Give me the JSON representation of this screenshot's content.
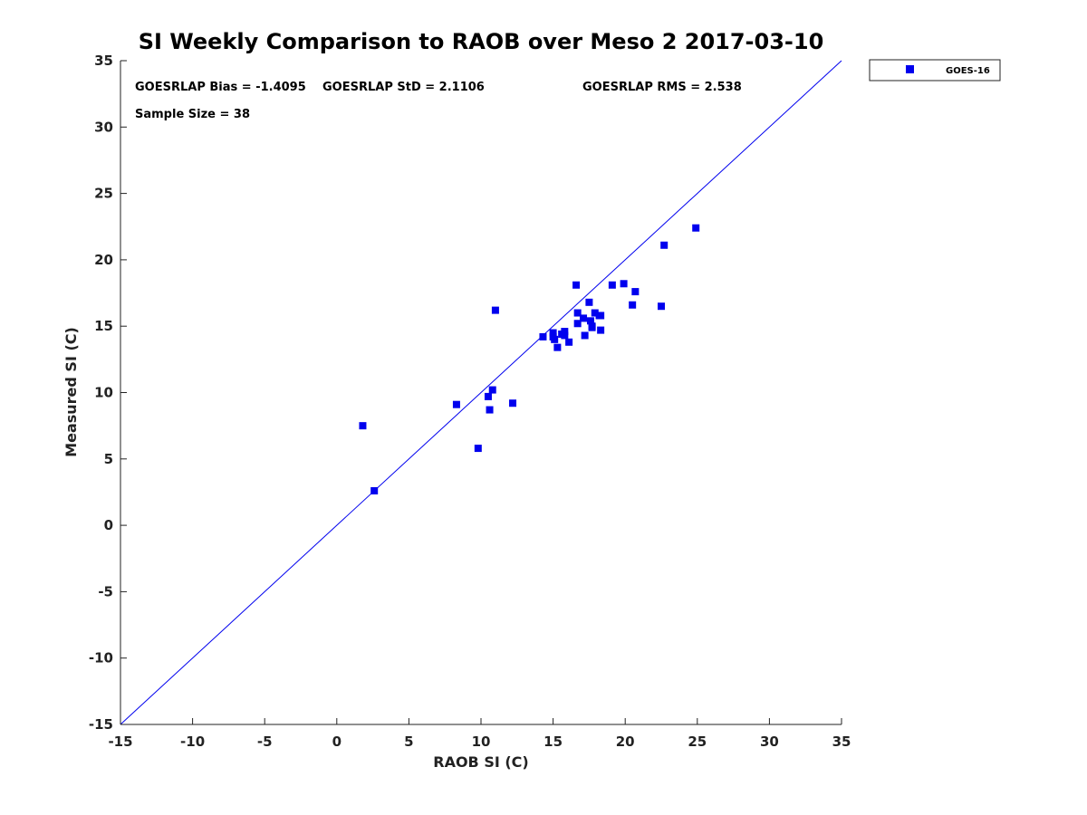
{
  "chart_data": {
    "type": "scatter",
    "title": "SI Weekly Comparison to RAOB over Meso 2 2017-03-10",
    "xlabel": "RAOB SI (C)",
    "ylabel": "Measured SI (C)",
    "xlim": [
      -15,
      35
    ],
    "ylim": [
      -15,
      35
    ],
    "xticks": [
      -15,
      -10,
      -5,
      0,
      5,
      10,
      15,
      20,
      25,
      30,
      35
    ],
    "yticks": [
      -15,
      -10,
      -5,
      0,
      5,
      10,
      15,
      20,
      25,
      30,
      35
    ],
    "grid": false,
    "legend_position": "outside-top-right",
    "reference_line": "1:1",
    "annotations": {
      "bias": "GOESRLAP Bias = -1.4095",
      "std": "GOESRLAP StD = 2.1106",
      "rms": "GOESRLAP RMS = 2.538",
      "sample": "Sample Size = 38"
    },
    "series": [
      {
        "name": "GOES-16",
        "color": "#0000ee",
        "marker": "square",
        "points": [
          [
            1.8,
            7.5
          ],
          [
            2.6,
            2.6
          ],
          [
            8.3,
            9.1
          ],
          [
            9.8,
            5.8
          ],
          [
            10.5,
            9.7
          ],
          [
            10.6,
            8.7
          ],
          [
            10.8,
            10.2
          ],
          [
            11.0,
            16.2
          ],
          [
            12.2,
            9.2
          ],
          [
            14.3,
            14.2
          ],
          [
            15.0,
            14.5
          ],
          [
            15.0,
            14.2
          ],
          [
            15.1,
            14.0
          ],
          [
            15.3,
            13.4
          ],
          [
            15.6,
            14.4
          ],
          [
            15.8,
            14.6
          ],
          [
            15.8,
            14.3
          ],
          [
            16.1,
            13.8
          ],
          [
            16.6,
            18.1
          ],
          [
            16.7,
            16.0
          ],
          [
            16.7,
            15.2
          ],
          [
            17.1,
            15.6
          ],
          [
            17.2,
            14.3
          ],
          [
            17.5,
            16.8
          ],
          [
            17.6,
            15.4
          ],
          [
            17.7,
            14.9
          ],
          [
            17.9,
            16.0
          ],
          [
            18.2,
            15.8
          ],
          [
            18.3,
            15.8
          ],
          [
            18.3,
            14.7
          ],
          [
            19.1,
            18.1
          ],
          [
            19.9,
            18.2
          ],
          [
            20.5,
            16.6
          ],
          [
            20.7,
            17.6
          ],
          [
            22.5,
            16.5
          ],
          [
            22.7,
            21.1
          ],
          [
            24.9,
            22.4
          ],
          [
            17.7,
            15.0
          ]
        ]
      }
    ]
  }
}
